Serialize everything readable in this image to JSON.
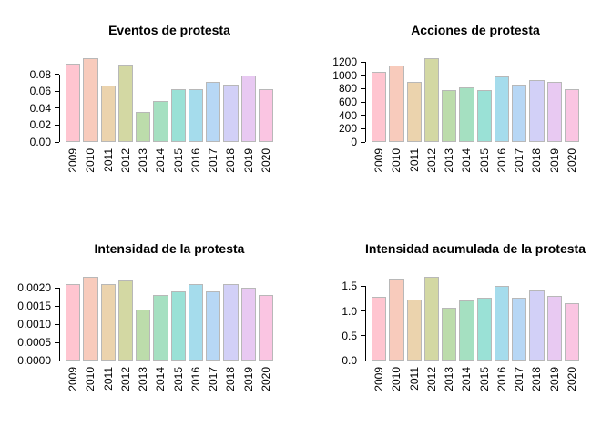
{
  "page": {
    "background": "#ffffff",
    "text_color": "#000000"
  },
  "palette": {
    "bar_colors": [
      "#ffc5d0",
      "#f8cbbc",
      "#ebd3ad",
      "#d3d8a3",
      "#bcdcab",
      "#a5e0c1",
      "#9ae1d6",
      "#a5dcec",
      "#b7d7f5",
      "#d2d0f7",
      "#e8c9f2",
      "#fac5e2"
    ],
    "bar_border": "#b8b8b8",
    "axis_color": "#000000"
  },
  "chart_data": [
    {
      "type": "bar",
      "title": "Eventos de protesta",
      "categories": [
        "2009",
        "2010",
        "2011",
        "2012",
        "2013",
        "2014",
        "2015",
        "2016",
        "2017",
        "2018",
        "2019",
        "2020"
      ],
      "values": [
        0.093,
        0.099,
        0.067,
        0.092,
        0.035,
        0.048,
        0.062,
        0.062,
        0.071,
        0.068,
        0.079,
        0.062
      ],
      "xlabel": "",
      "ylabel": "",
      "yticks": [
        0,
        0.02,
        0.04,
        0.06,
        0.08
      ],
      "ytick_labels": [
        "0.00",
        "0.02",
        "0.04",
        "0.06",
        "0.08"
      ],
      "ylim": [
        0,
        0.099
      ],
      "grid": false,
      "legend": false
    },
    {
      "type": "bar",
      "title": "Acciones de protesta",
      "categories": [
        "2009",
        "2010",
        "2011",
        "2012",
        "2013",
        "2014",
        "2015",
        "2016",
        "2017",
        "2018",
        "2019",
        "2020"
      ],
      "values": [
        1050,
        1150,
        895,
        1255,
        780,
        820,
        775,
        985,
        865,
        925,
        895,
        795
      ],
      "xlabel": "",
      "ylabel": "",
      "yticks": [
        0,
        200,
        400,
        600,
        800,
        1000,
        1200
      ],
      "ytick_labels": [
        "0",
        "200",
        "400",
        "600",
        "800",
        "1000",
        "1200"
      ],
      "ylim": [
        0,
        1255
      ],
      "grid": false,
      "legend": false
    },
    {
      "type": "bar",
      "title": "Intensidad de la protesta",
      "categories": [
        "2009",
        "2010",
        "2011",
        "2012",
        "2013",
        "2014",
        "2015",
        "2016",
        "2017",
        "2018",
        "2019",
        "2020"
      ],
      "values": [
        0.0021,
        0.0023,
        0.0021,
        0.0022,
        0.0014,
        0.0018,
        0.0019,
        0.0021,
        0.0019,
        0.0021,
        0.002,
        0.0018
      ],
      "xlabel": "",
      "ylabel": "",
      "yticks": [
        0,
        0.0005,
        0.001,
        0.0015,
        0.002
      ],
      "ytick_labels": [
        "0.0000",
        "0.0005",
        "0.0010",
        "0.0015",
        "0.0020"
      ],
      "ylim": [
        0,
        0.0023
      ],
      "grid": false,
      "legend": false
    },
    {
      "type": "bar",
      "title": "Intensidad acumulada de la protesta",
      "categories": [
        "2009",
        "2010",
        "2011",
        "2012",
        "2013",
        "2014",
        "2015",
        "2016",
        "2017",
        "2018",
        "2019",
        "2020"
      ],
      "values": [
        1.29,
        1.63,
        1.24,
        1.69,
        1.07,
        1.22,
        1.26,
        1.5,
        1.26,
        1.42,
        1.31,
        1.16
      ],
      "xlabel": "",
      "ylabel": "",
      "yticks": [
        0,
        0.5,
        1.0,
        1.5
      ],
      "ytick_labels": [
        "0.0",
        "0.5",
        "1.0",
        "1.5"
      ],
      "ylim": [
        0,
        1.69
      ],
      "grid": false,
      "legend": false
    }
  ]
}
